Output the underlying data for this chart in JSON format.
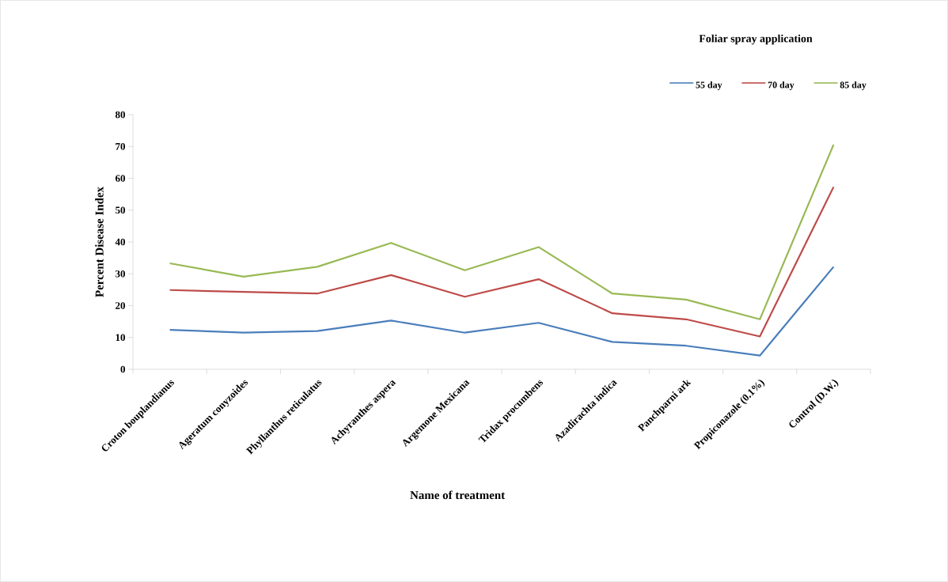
{
  "chart_data": {
    "type": "line",
    "xlabel": "Name of treatment",
    "ylabel": "Percent Disease Index",
    "legend_title": "Foliar spray application",
    "categories": [
      "Croton bouplandianus",
      "Ageratum conyzoides",
      "Phyllanthus reticulatus",
      "Achyranthes aspera",
      "Argemone Mexicana",
      "Tridax procumbens",
      "Azadirachta indica",
      "Panchparni ark",
      "Propiconazole (0.1%)",
      "Control (D.W.)"
    ],
    "series": [
      {
        "name": "55 day",
        "color": "#4a7ebb",
        "values": [
          12.4,
          11.5,
          12.0,
          15.3,
          11.5,
          14.6,
          8.6,
          7.4,
          4.3,
          32.2
        ]
      },
      {
        "name": "70 day",
        "color": "#be4b48",
        "values": [
          24.9,
          24.3,
          23.8,
          29.6,
          22.8,
          28.3,
          17.6,
          15.7,
          10.3,
          57.3
        ]
      },
      {
        "name": "85 day",
        "color": "#98b954",
        "values": [
          33.3,
          29.1,
          32.2,
          39.7,
          31.1,
          38.4,
          23.8,
          21.9,
          15.7,
          70.6
        ]
      }
    ],
    "ylim": [
      0,
      80
    ],
    "yticks": [
      0,
      10,
      20,
      30,
      40,
      50,
      60,
      70,
      80
    ],
    "grid": false,
    "legend": "top right",
    "marker": "none",
    "line_style": "solid"
  }
}
